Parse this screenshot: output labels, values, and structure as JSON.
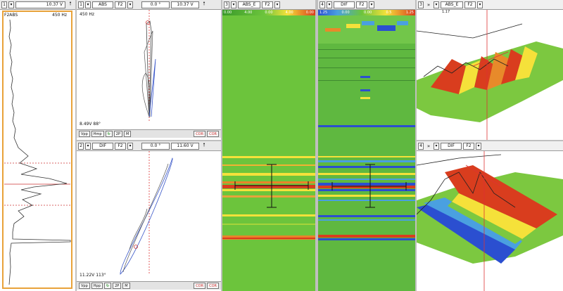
{
  "strip": {
    "field_num": "1",
    "range": "10.37 V",
    "freq_label": "F2ABS",
    "freq_value": "450 Hz",
    "up_arrow": "🠕"
  },
  "lissajous_top": {
    "channel": "1",
    "mode": "ABS",
    "freq": "F2",
    "angle": "0.0 °",
    "range": "10.37 V",
    "freq_value": "450 Hz",
    "reading": "8.49V 88°",
    "buttons": [
      "Vpp",
      "Hmp",
      "↻",
      "2P",
      "M",
      "COR",
      "COR"
    ]
  },
  "lissajous_bottom": {
    "channel": "2",
    "mode": "DIF",
    "freq": "F2",
    "angle": "0.0 °",
    "range": "11.60 V",
    "reading": "11.22V 113°",
    "buttons": [
      "Vpp",
      "Hpp",
      "↻",
      "2P",
      "M",
      "COR",
      "COR"
    ]
  },
  "cscan_abs": {
    "channel": "3",
    "mode": "ABS_E",
    "freq": "F2",
    "scale": [
      "0.00",
      "4.00",
      "0.00",
      "4.00",
      "0.00"
    ]
  },
  "cscan_dif": {
    "channel": "4",
    "mode": "DIF",
    "freq": "F2",
    "scale": [
      "1.25",
      "0.00",
      "0.00",
      "0.5",
      "1.25"
    ]
  },
  "view3d_top": {
    "channel": "3",
    "nav": "»",
    "mode": "ABS_E",
    "freq": "F2",
    "range": "1.17"
  },
  "view3d_bottom": {
    "channel": "4",
    "nav": "»",
    "mode": "DIF",
    "freq": "F2"
  },
  "colors": {
    "frame": "#e8a23a",
    "green": "#66c23a",
    "red": "#d93d1e",
    "blue": "#2b4fd0",
    "yellow": "#f5e13a"
  }
}
